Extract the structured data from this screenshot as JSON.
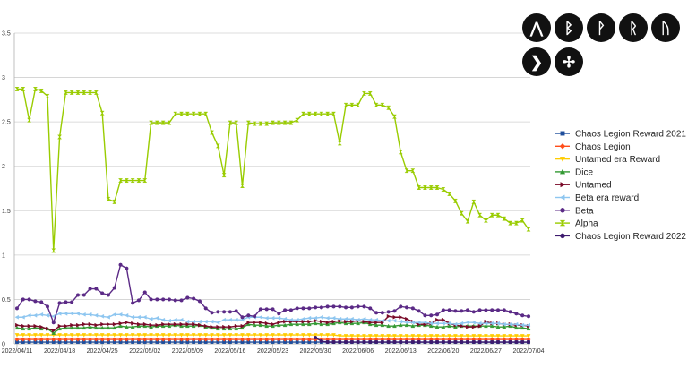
{
  "chart_data": {
    "type": "line",
    "title": "",
    "xlabel": "",
    "ylabel": "",
    "ylim": [
      0,
      3.5
    ],
    "yticks": [
      "0",
      "0.5",
      "1",
      "1.5",
      "2",
      "2.5",
      "3",
      "3.5"
    ],
    "ytick_values": [
      0,
      0.5,
      1,
      1.5,
      2,
      2.5,
      3,
      3.5
    ],
    "grid": "horizontal",
    "legend_position": "right",
    "x_tick_labels": [
      "2022/04/11",
      "2022/04/18",
      "2022/04/25",
      "2022/05/02",
      "2022/05/09",
      "2022/05/16",
      "2022/05/23",
      "2022/05/30",
      "2022/06/06",
      "2022/06/13",
      "2022/06/20",
      "2022/06/27",
      "2022/07/04"
    ],
    "x_start": "2022/04/11",
    "x_end": "2022/07/04",
    "x_tick_every_days": 7,
    "series": [
      {
        "name": "Chaos Legion Reward 2021",
        "color": "#1f4e9c",
        "marker": "square",
        "values": [
          0.02,
          0.02,
          0.02,
          0.02,
          0.02,
          0.02,
          0.02,
          0.02,
          0.02,
          0.02,
          0.02,
          0.02,
          0.02,
          0.02,
          0.02,
          0.02,
          0.02,
          0.02,
          0.02,
          0.02,
          0.02,
          0.02,
          0.02,
          0.02,
          0.02,
          0.02,
          0.02,
          0.02,
          0.02,
          0.02,
          0.02,
          0.02,
          0.02,
          0.02,
          0.02,
          0.02,
          0.02,
          0.02,
          0.02,
          0.02,
          0.02,
          0.02,
          0.02,
          0.02,
          0.02,
          0.02,
          0.02,
          0.02,
          0.02,
          0.02,
          0.02,
          0.02,
          0.02,
          0.02,
          0.02,
          0.02,
          0.02,
          0.02,
          0.02,
          0.02,
          0.02,
          0.02,
          0.02,
          0.02,
          0.02,
          0.02,
          0.02,
          0.02,
          0.02,
          0.02,
          0.02,
          0.02,
          0.02,
          0.02,
          0.02,
          0.02,
          0.02,
          0.02,
          0.02,
          0.02,
          0.02,
          0.02,
          0.02,
          0.02,
          0.02
        ]
      },
      {
        "name": "Chaos Legion",
        "color": "#ff4d1a",
        "marker": "diamond",
        "values": [
          0.05,
          0.05,
          0.05,
          0.05,
          0.05,
          0.05,
          0.05,
          0.05,
          0.05,
          0.05,
          0.05,
          0.05,
          0.05,
          0.05,
          0.05,
          0.05,
          0.05,
          0.05,
          0.05,
          0.05,
          0.05,
          0.05,
          0.05,
          0.05,
          0.05,
          0.05,
          0.05,
          0.05,
          0.05,
          0.05,
          0.05,
          0.05,
          0.05,
          0.05,
          0.05,
          0.05,
          0.05,
          0.05,
          0.05,
          0.05,
          0.05,
          0.05,
          0.05,
          0.05,
          0.05,
          0.05,
          0.05,
          0.05,
          0.05,
          0.05,
          0.05,
          0.05,
          0.05,
          0.05,
          0.05,
          0.05,
          0.05,
          0.05,
          0.05,
          0.05,
          0.05,
          0.05,
          0.05,
          0.05,
          0.05,
          0.05,
          0.05,
          0.05,
          0.05,
          0.05,
          0.05,
          0.05,
          0.05,
          0.05,
          0.05,
          0.05,
          0.05,
          0.05,
          0.05,
          0.05,
          0.05,
          0.05,
          0.05,
          0.05,
          0.05
        ]
      },
      {
        "name": "Untamed era Reward",
        "color": "#ffcc00",
        "marker": "triangle-down",
        "values": [
          0.1,
          0.1,
          0.1,
          0.1,
          0.1,
          0.1,
          0.1,
          0.1,
          0.1,
          0.1,
          0.1,
          0.1,
          0.1,
          0.1,
          0.1,
          0.1,
          0.1,
          0.1,
          0.1,
          0.1,
          0.1,
          0.1,
          0.1,
          0.1,
          0.1,
          0.1,
          0.1,
          0.1,
          0.1,
          0.1,
          0.1,
          0.1,
          0.1,
          0.1,
          0.1,
          0.1,
          0.1,
          0.1,
          0.1,
          0.1,
          0.1,
          0.1,
          0.1,
          0.1,
          0.1,
          0.1,
          0.1,
          0.1,
          0.1,
          0.1,
          0.1,
          0.1,
          0.1,
          0.09,
          0.09,
          0.09,
          0.09,
          0.09,
          0.09,
          0.09,
          0.09,
          0.09,
          0.09,
          0.09,
          0.09,
          0.09,
          0.09,
          0.09,
          0.09,
          0.09,
          0.09,
          0.09,
          0.09,
          0.09,
          0.09,
          0.09,
          0.09,
          0.09,
          0.09,
          0.09,
          0.09,
          0.09,
          0.09,
          0.09,
          0.09
        ]
      },
      {
        "name": "Dice",
        "color": "#339933",
        "marker": "triangle-up",
        "values": [
          0.18,
          0.17,
          0.17,
          0.18,
          0.17,
          0.17,
          0.12,
          0.17,
          0.18,
          0.18,
          0.18,
          0.18,
          0.19,
          0.18,
          0.18,
          0.18,
          0.18,
          0.2,
          0.19,
          0.19,
          0.2,
          0.2,
          0.19,
          0.2,
          0.2,
          0.2,
          0.21,
          0.2,
          0.2,
          0.2,
          0.21,
          0.19,
          0.18,
          0.17,
          0.17,
          0.17,
          0.17,
          0.18,
          0.22,
          0.21,
          0.21,
          0.2,
          0.2,
          0.21,
          0.21,
          0.22,
          0.22,
          0.22,
          0.22,
          0.23,
          0.22,
          0.22,
          0.23,
          0.24,
          0.23,
          0.23,
          0.23,
          0.24,
          0.22,
          0.21,
          0.21,
          0.2,
          0.2,
          0.21,
          0.21,
          0.2,
          0.21,
          0.21,
          0.2,
          0.19,
          0.19,
          0.2,
          0.19,
          0.2,
          0.2,
          0.2,
          0.2,
          0.2,
          0.2,
          0.19,
          0.19,
          0.2,
          0.18,
          0.18,
          0.17
        ]
      },
      {
        "name": "Untamed",
        "color": "#7a0a28",
        "marker": "triangle-right",
        "values": [
          0.21,
          0.2,
          0.2,
          0.2,
          0.19,
          0.17,
          0.15,
          0.2,
          0.2,
          0.21,
          0.21,
          0.22,
          0.22,
          0.21,
          0.22,
          0.22,
          0.22,
          0.23,
          0.24,
          0.23,
          0.22,
          0.22,
          0.21,
          0.21,
          0.22,
          0.22,
          0.22,
          0.22,
          0.22,
          0.22,
          0.21,
          0.2,
          0.19,
          0.19,
          0.19,
          0.19,
          0.2,
          0.2,
          0.24,
          0.24,
          0.24,
          0.23,
          0.22,
          0.24,
          0.25,
          0.25,
          0.25,
          0.25,
          0.25,
          0.26,
          0.25,
          0.24,
          0.25,
          0.26,
          0.25,
          0.25,
          0.26,
          0.25,
          0.24,
          0.24,
          0.24,
          0.31,
          0.3,
          0.3,
          0.28,
          0.25,
          0.22,
          0.22,
          0.23,
          0.27,
          0.27,
          0.23,
          0.21,
          0.2,
          0.19,
          0.19,
          0.2,
          0.25,
          0.23,
          0.23,
          0.22,
          0.22,
          0.21,
          0.21,
          0.2
        ]
      },
      {
        "name": "Beta era reward",
        "color": "#8ec6f0",
        "marker": "triangle-left",
        "values": [
          0.3,
          0.3,
          0.32,
          0.32,
          0.33,
          0.32,
          0.31,
          0.34,
          0.34,
          0.34,
          0.34,
          0.33,
          0.33,
          0.32,
          0.31,
          0.3,
          0.33,
          0.33,
          0.32,
          0.3,
          0.3,
          0.3,
          0.28,
          0.29,
          0.27,
          0.26,
          0.27,
          0.27,
          0.25,
          0.25,
          0.25,
          0.25,
          0.25,
          0.24,
          0.27,
          0.27,
          0.27,
          0.27,
          0.3,
          0.3,
          0.3,
          0.29,
          0.29,
          0.29,
          0.28,
          0.27,
          0.27,
          0.28,
          0.29,
          0.29,
          0.3,
          0.29,
          0.29,
          0.28,
          0.28,
          0.28,
          0.27,
          0.28,
          0.27,
          0.27,
          0.26,
          0.26,
          0.26,
          0.25,
          0.24,
          0.24,
          0.24,
          0.24,
          0.23,
          0.23,
          0.23,
          0.23,
          0.22,
          0.23,
          0.24,
          0.24,
          0.23,
          0.23,
          0.23,
          0.23,
          0.22,
          0.22,
          0.22,
          0.21,
          0.21
        ]
      },
      {
        "name": "Beta",
        "color": "#5b2a86",
        "marker": "circle",
        "values": [
          0.4,
          0.5,
          0.5,
          0.48,
          0.47,
          0.42,
          0.24,
          0.46,
          0.47,
          0.47,
          0.55,
          0.55,
          0.62,
          0.62,
          0.57,
          0.55,
          0.63,
          0.89,
          0.85,
          0.46,
          0.49,
          0.58,
          0.5,
          0.5,
          0.5,
          0.5,
          0.49,
          0.49,
          0.52,
          0.51,
          0.48,
          0.4,
          0.35,
          0.36,
          0.36,
          0.36,
          0.37,
          0.3,
          0.32,
          0.31,
          0.39,
          0.39,
          0.39,
          0.34,
          0.38,
          0.38,
          0.4,
          0.4,
          0.4,
          0.41,
          0.41,
          0.42,
          0.42,
          0.42,
          0.41,
          0.41,
          0.42,
          0.42,
          0.4,
          0.35,
          0.35,
          0.36,
          0.37,
          0.42,
          0.41,
          0.4,
          0.37,
          0.32,
          0.32,
          0.33,
          0.38,
          0.38,
          0.37,
          0.37,
          0.38,
          0.36,
          0.38,
          0.38,
          0.38,
          0.38,
          0.38,
          0.36,
          0.34,
          0.32,
          0.31
        ]
      },
      {
        "name": "Alpha",
        "color": "#99cc00",
        "marker": "hourglass",
        "values": [
          2.87,
          2.87,
          2.52,
          2.87,
          2.85,
          2.79,
          1.05,
          2.33,
          2.83,
          2.83,
          2.83,
          2.83,
          2.83,
          2.83,
          2.6,
          1.63,
          1.6,
          1.84,
          1.84,
          1.84,
          1.84,
          1.84,
          2.49,
          2.49,
          2.49,
          2.49,
          2.59,
          2.59,
          2.59,
          2.59,
          2.59,
          2.59,
          2.38,
          2.23,
          1.9,
          2.49,
          2.49,
          1.78,
          2.49,
          2.48,
          2.48,
          2.48,
          2.49,
          2.49,
          2.49,
          2.49,
          2.52,
          2.59,
          2.59,
          2.59,
          2.59,
          2.59,
          2.59,
          2.26,
          2.69,
          2.69,
          2.69,
          2.82,
          2.82,
          2.69,
          2.69,
          2.66,
          2.56,
          2.16,
          1.95,
          1.95,
          1.76,
          1.76,
          1.76,
          1.76,
          1.74,
          1.69,
          1.61,
          1.47,
          1.38,
          1.6,
          1.45,
          1.39,
          1.45,
          1.45,
          1.41,
          1.36,
          1.36,
          1.39,
          1.29
        ]
      },
      {
        "name": "Chaos Legion Reward 2022",
        "color": "#3d1a6e",
        "marker": "circle",
        "values": [
          null,
          null,
          null,
          null,
          null,
          null,
          null,
          null,
          null,
          null,
          null,
          null,
          null,
          null,
          null,
          null,
          null,
          null,
          null,
          null,
          null,
          null,
          null,
          null,
          null,
          null,
          null,
          null,
          null,
          null,
          null,
          null,
          null,
          null,
          null,
          null,
          null,
          null,
          null,
          null,
          null,
          null,
          null,
          null,
          null,
          null,
          null,
          null,
          null,
          0.07,
          0.03,
          0.02,
          0.02,
          0.02,
          0.02,
          0.02,
          0.02,
          0.02,
          0.02,
          0.02,
          0.02,
          0.02,
          0.02,
          0.02,
          0.02,
          0.02,
          0.02,
          0.02,
          0.02,
          0.02,
          0.02,
          0.02,
          0.02,
          0.02,
          0.02,
          0.02,
          0.02,
          0.02,
          0.02,
          0.02,
          0.02,
          0.02,
          0.02,
          0.02,
          0.02
        ]
      }
    ]
  },
  "icons": [
    {
      "name": "rune-a-icon",
      "glyph": "⋀"
    },
    {
      "name": "rune-b-icon",
      "glyph": "ᛒ"
    },
    {
      "name": "rune-p-icon",
      "glyph": "ᚹ"
    },
    {
      "name": "rune-r-icon",
      "glyph": "ᚱ"
    },
    {
      "name": "rune-u-icon",
      "glyph": "ᚢ"
    },
    {
      "name": "rune-arrow-icon",
      "glyph": "❯"
    },
    {
      "name": "rune-diamond-icon",
      "glyph": "✢"
    }
  ]
}
